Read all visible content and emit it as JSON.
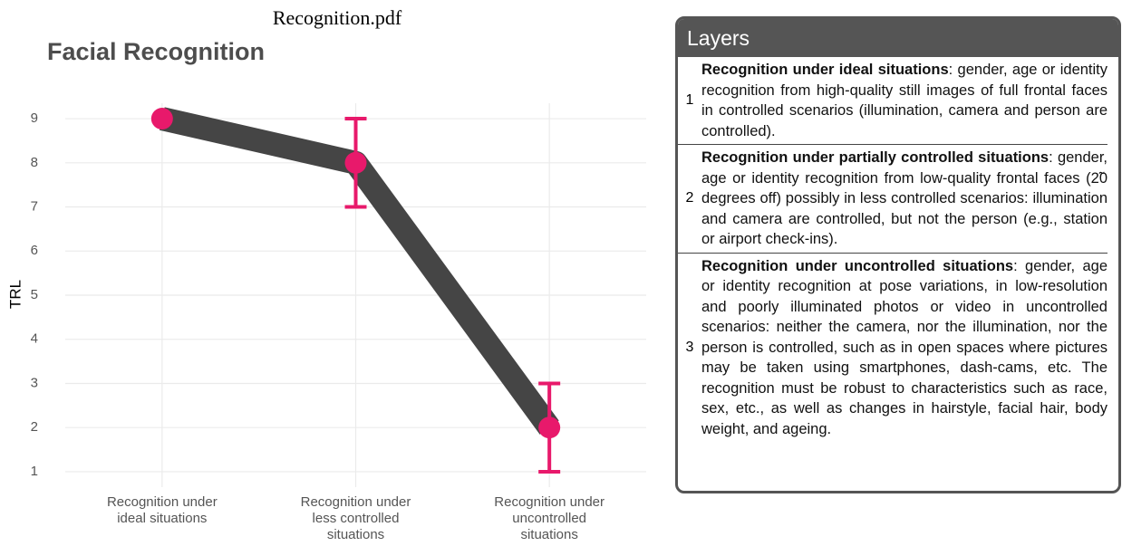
{
  "page_title": "Recognition.pdf",
  "chart_data": {
    "type": "line",
    "title": "Facial Recognition",
    "y_label": "TRL",
    "categories": [
      "Recognition under\nideal situations",
      "Recognition under\nless controlled\nsituations",
      "Recognition under\nuncontrolled\nsituations"
    ],
    "values": [
      9,
      8,
      2
    ],
    "errors": [
      null,
      1,
      1
    ],
    "line_color": "#454545",
    "point_color": "#e8196b",
    "ylim": [
      0.65,
      9.35
    ],
    "yticks": [
      1,
      2,
      3,
      4,
      5,
      6,
      7,
      8,
      9
    ],
    "grid": true
  },
  "layers_panel": {
    "title": "Layers",
    "rows": [
      {
        "number": "1",
        "heading": "Recognition under ideal situations",
        "text": ": gender, age or identity recognition from high-quality still images of full frontal faces in controlled scenarios (illumination, camera and person are controlled)."
      },
      {
        "number": "2",
        "heading": "Recognition under partially controlled situations",
        "text": ": gender, age or identity recognition from low-quality frontal faces (2̃0 degrees off) possibly in less controlled scenarios: illumination and camera are controlled, but not the person (e.g., station or airport check-ins)."
      },
      {
        "number": "3",
        "heading": "Recognition under uncontrolled situations",
        "text": ": gender, age or identity recognition at pose variations, in low-resolution and poorly illuminated photos or video in uncontrolled scenarios: neither the camera, nor the illumination, nor the person is controlled, such as in open spaces where pictures may be taken using smartphones, dash-cams, etc.  The recognition must be robust to characteristics such as race, sex, etc., as well as changes in hairstyle, facial hair, body weight, and ageing."
      }
    ]
  }
}
